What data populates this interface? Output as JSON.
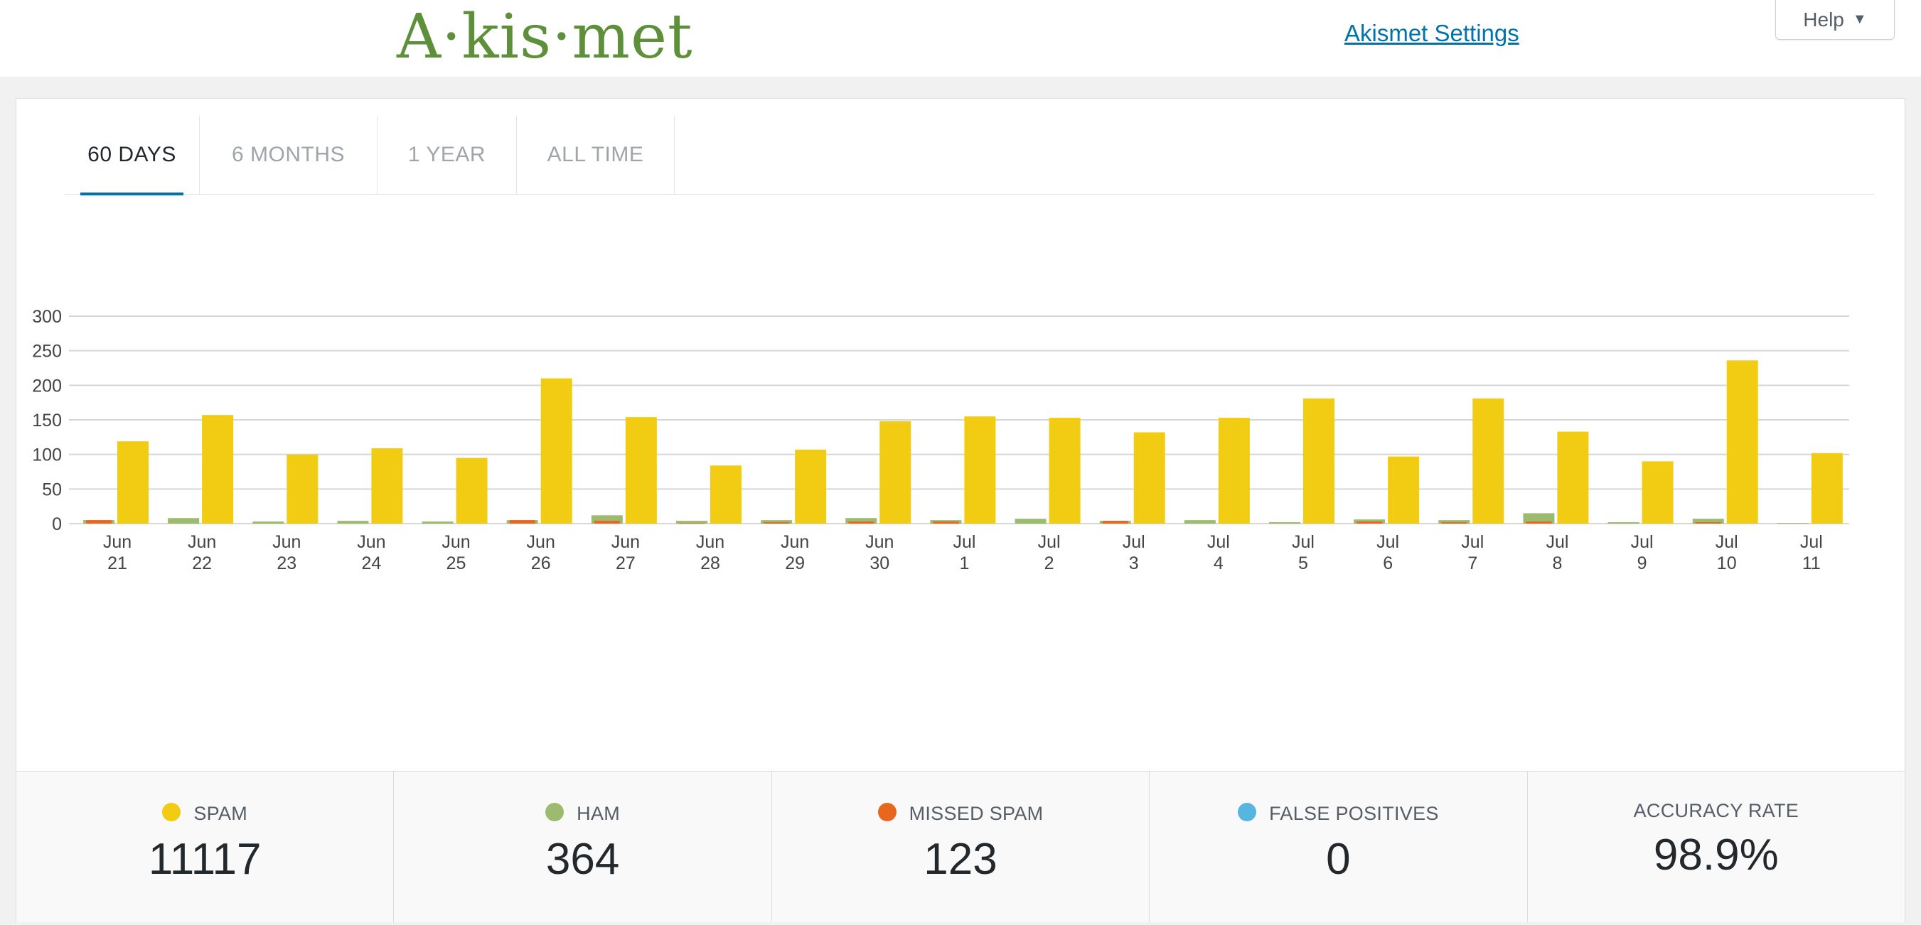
{
  "header": {
    "logo_text": "A·kis·met",
    "settings_link": "Akismet Settings",
    "help_label": "Help",
    "help_icon": "caret-down-icon"
  },
  "tabs": [
    {
      "label": "60 DAYS",
      "active": true
    },
    {
      "label": "6 MONTHS",
      "active": false
    },
    {
      "label": "1 YEAR",
      "active": false
    },
    {
      "label": "ALL TIME",
      "active": false
    }
  ],
  "colors": {
    "spam": "#f2cc12",
    "ham": "#9dbb6f",
    "missed_spam": "#e9661d",
    "false_positives": "#57b6e0",
    "grid": "#d7d7d7",
    "tab_active_underline": "#0073aa",
    "link": "#0073aa",
    "logo": "#5e8f3b"
  },
  "chart_data": {
    "type": "bar",
    "categories": [
      [
        "Jun",
        "21"
      ],
      [
        "Jun",
        "22"
      ],
      [
        "Jun",
        "23"
      ],
      [
        "Jun",
        "24"
      ],
      [
        "Jun",
        "25"
      ],
      [
        "Jun",
        "26"
      ],
      [
        "Jun",
        "27"
      ],
      [
        "Jun",
        "28"
      ],
      [
        "Jun",
        "29"
      ],
      [
        "Jun",
        "30"
      ],
      [
        "Jul",
        "1"
      ],
      [
        "Jul",
        "2"
      ],
      [
        "Jul",
        "3"
      ],
      [
        "Jul",
        "4"
      ],
      [
        "Jul",
        "5"
      ],
      [
        "Jul",
        "6"
      ],
      [
        "Jul",
        "7"
      ],
      [
        "Jul",
        "8"
      ],
      [
        "Jul",
        "9"
      ],
      [
        "Jul",
        "10"
      ],
      [
        "Jul",
        "11"
      ]
    ],
    "series": [
      {
        "key": "ham",
        "values": [
          5,
          8,
          3,
          4,
          3,
          5,
          12,
          4,
          5,
          8,
          5,
          7,
          4,
          5,
          2,
          6,
          5,
          15,
          2,
          7,
          1
        ]
      },
      {
        "key": "missed_spam",
        "values": [
          5,
          0,
          0,
          0,
          0,
          5,
          4,
          1,
          2,
          3,
          3,
          0,
          4,
          0,
          0,
          3,
          2,
          3,
          0,
          2,
          0
        ]
      },
      {
        "key": "spam",
        "values": [
          119,
          157,
          100,
          109,
          95,
          210,
          154,
          84,
          107,
          148,
          155,
          153,
          132,
          153,
          181,
          97,
          181,
          133,
          90,
          236,
          102
        ]
      }
    ],
    "y_ticks": [
      0,
      50,
      100,
      150,
      200,
      250,
      300
    ],
    "ylim": [
      0,
      300
    ],
    "grid": true,
    "legend": "none"
  },
  "stats": [
    {
      "key": "spam",
      "label": "SPAM",
      "value": "11117"
    },
    {
      "key": "ham",
      "label": "HAM",
      "value": "364"
    },
    {
      "key": "missed_spam",
      "label": "MISSED SPAM",
      "value": "123"
    },
    {
      "key": "false_positives",
      "label": "FALSE POSITIVES",
      "value": "0"
    },
    {
      "key": "accuracy",
      "label": "ACCURACY RATE",
      "value": "98.9%"
    }
  ]
}
